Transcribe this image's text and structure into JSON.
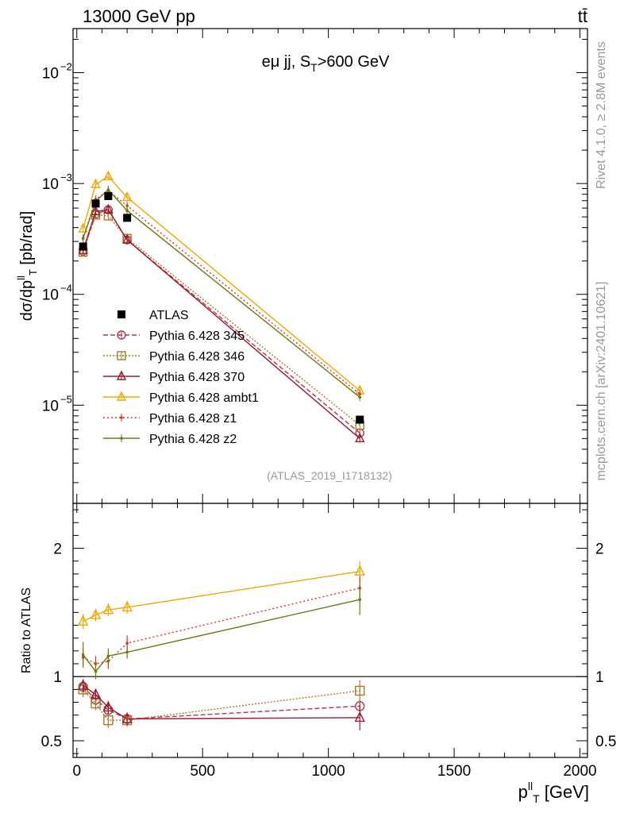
{
  "header": {
    "left": "13000 GeV pp",
    "right": "tt̄"
  },
  "side_labels": {
    "rivet": "Rivet 4.1.0, ≥ 2.8M events",
    "mcplots": "mcplots.cern.ch [arXiv:2401.10621]"
  },
  "chart_data": {
    "type": "line",
    "title": "eμ jj, S_T>600 GeV",
    "analysis_id": "(ATLAS_2019_I1718132)",
    "xlabel": "p_T^ll [GeV]",
    "ylabel": "dσ/dp_T^ll [pb/rad]",
    "ratio_ylabel": "Ratio to ATLAS",
    "xlim": [
      -15,
      2030
    ],
    "ylim": [
      1.3e-06,
      0.025
    ],
    "yscale": "log",
    "ratio_ylim": [
      0.37,
      2.35
    ],
    "x_ticks": [
      0,
      500,
      1000,
      1500,
      2000
    ],
    "y_ticks": [
      {
        "value": 1e-05,
        "label": "10",
        "exp": "−5"
      },
      {
        "value": 0.0001,
        "label": "10",
        "exp": "−4"
      },
      {
        "value": 0.001,
        "label": "10",
        "exp": "−3"
      },
      {
        "value": 0.01,
        "label": "10",
        "exp": "−2"
      }
    ],
    "ratio_ticks": [
      0.5,
      1,
      2
    ],
    "x": [
      25,
      75,
      125,
      200,
      1125
    ],
    "data": {
      "name": "ATLAS",
      "values": [
        0.00027,
        0.00066,
        0.00077,
        0.00049,
        7.4e-06
      ],
      "color": "#000000"
    },
    "series": [
      {
        "name": "Pythia 6.428 345",
        "color": "#b03a4e",
        "marker": "circle",
        "dash": "6,3",
        "values": [
          0.000245,
          0.00053,
          0.00058,
          0.00031,
          5.6e-06
        ],
        "ratio": [
          0.92,
          0.82,
          0.74,
          0.67,
          0.77
        ],
        "ratio_err": [
          0.04,
          0.05,
          0.05,
          0.05,
          0.05
        ]
      },
      {
        "name": "Pythia 6.428 346",
        "color": "#a87a2e",
        "marker": "square",
        "dash": "2,2",
        "values": [
          0.00024,
          0.00052,
          0.00051,
          0.00032,
          6.6e-06
        ],
        "ratio": [
          0.9,
          0.79,
          0.66,
          0.66,
          0.89
        ],
        "ratio_err": [
          0.06,
          0.05,
          0.06,
          0.05,
          0.08
        ]
      },
      {
        "name": "Pythia 6.428 370",
        "color": "#9b1b30",
        "marker": "triangle",
        "dash": "",
        "values": [
          0.00025,
          0.00056,
          0.00058,
          0.00031,
          5e-06
        ],
        "ratio": [
          0.93,
          0.86,
          0.76,
          0.67,
          0.68
        ],
        "ratio_err": [
          0.05,
          0.04,
          0.05,
          0.05,
          0.1
        ]
      },
      {
        "name": "Pythia 6.428 ambt1",
        "color": "#f0a800",
        "marker": "triangle",
        "dash": "",
        "values": [
          0.00039,
          0.00098,
          0.00116,
          0.00075,
          1.35e-05
        ],
        "ratio": [
          1.43,
          1.48,
          1.52,
          1.54,
          1.82
        ],
        "ratio_err": [
          0.06,
          0.05,
          0.05,
          0.05,
          0.08
        ]
      },
      {
        "name": "Pythia 6.428 z1",
        "color": "#e03020",
        "marker": "dot",
        "dash": "2,3",
        "values": [
          0.00032,
          0.00072,
          0.00086,
          0.00063,
          1.26e-05
        ],
        "ratio": [
          1.15,
          1.1,
          1.12,
          1.26,
          1.69
        ],
        "ratio_err": [
          0.07,
          0.06,
          0.06,
          0.06,
          0.09
        ]
      },
      {
        "name": "Pythia 6.428 z2",
        "color": "#6e7a12",
        "marker": "dot",
        "dash": "",
        "values": [
          0.00032,
          0.00069,
          0.00088,
          0.00057,
          1.18e-05
        ],
        "ratio": [
          1.17,
          1.04,
          1.16,
          1.19,
          1.6
        ],
        "ratio_err": [
          0.1,
          0.06,
          0.06,
          0.05,
          0.12
        ]
      }
    ]
  }
}
